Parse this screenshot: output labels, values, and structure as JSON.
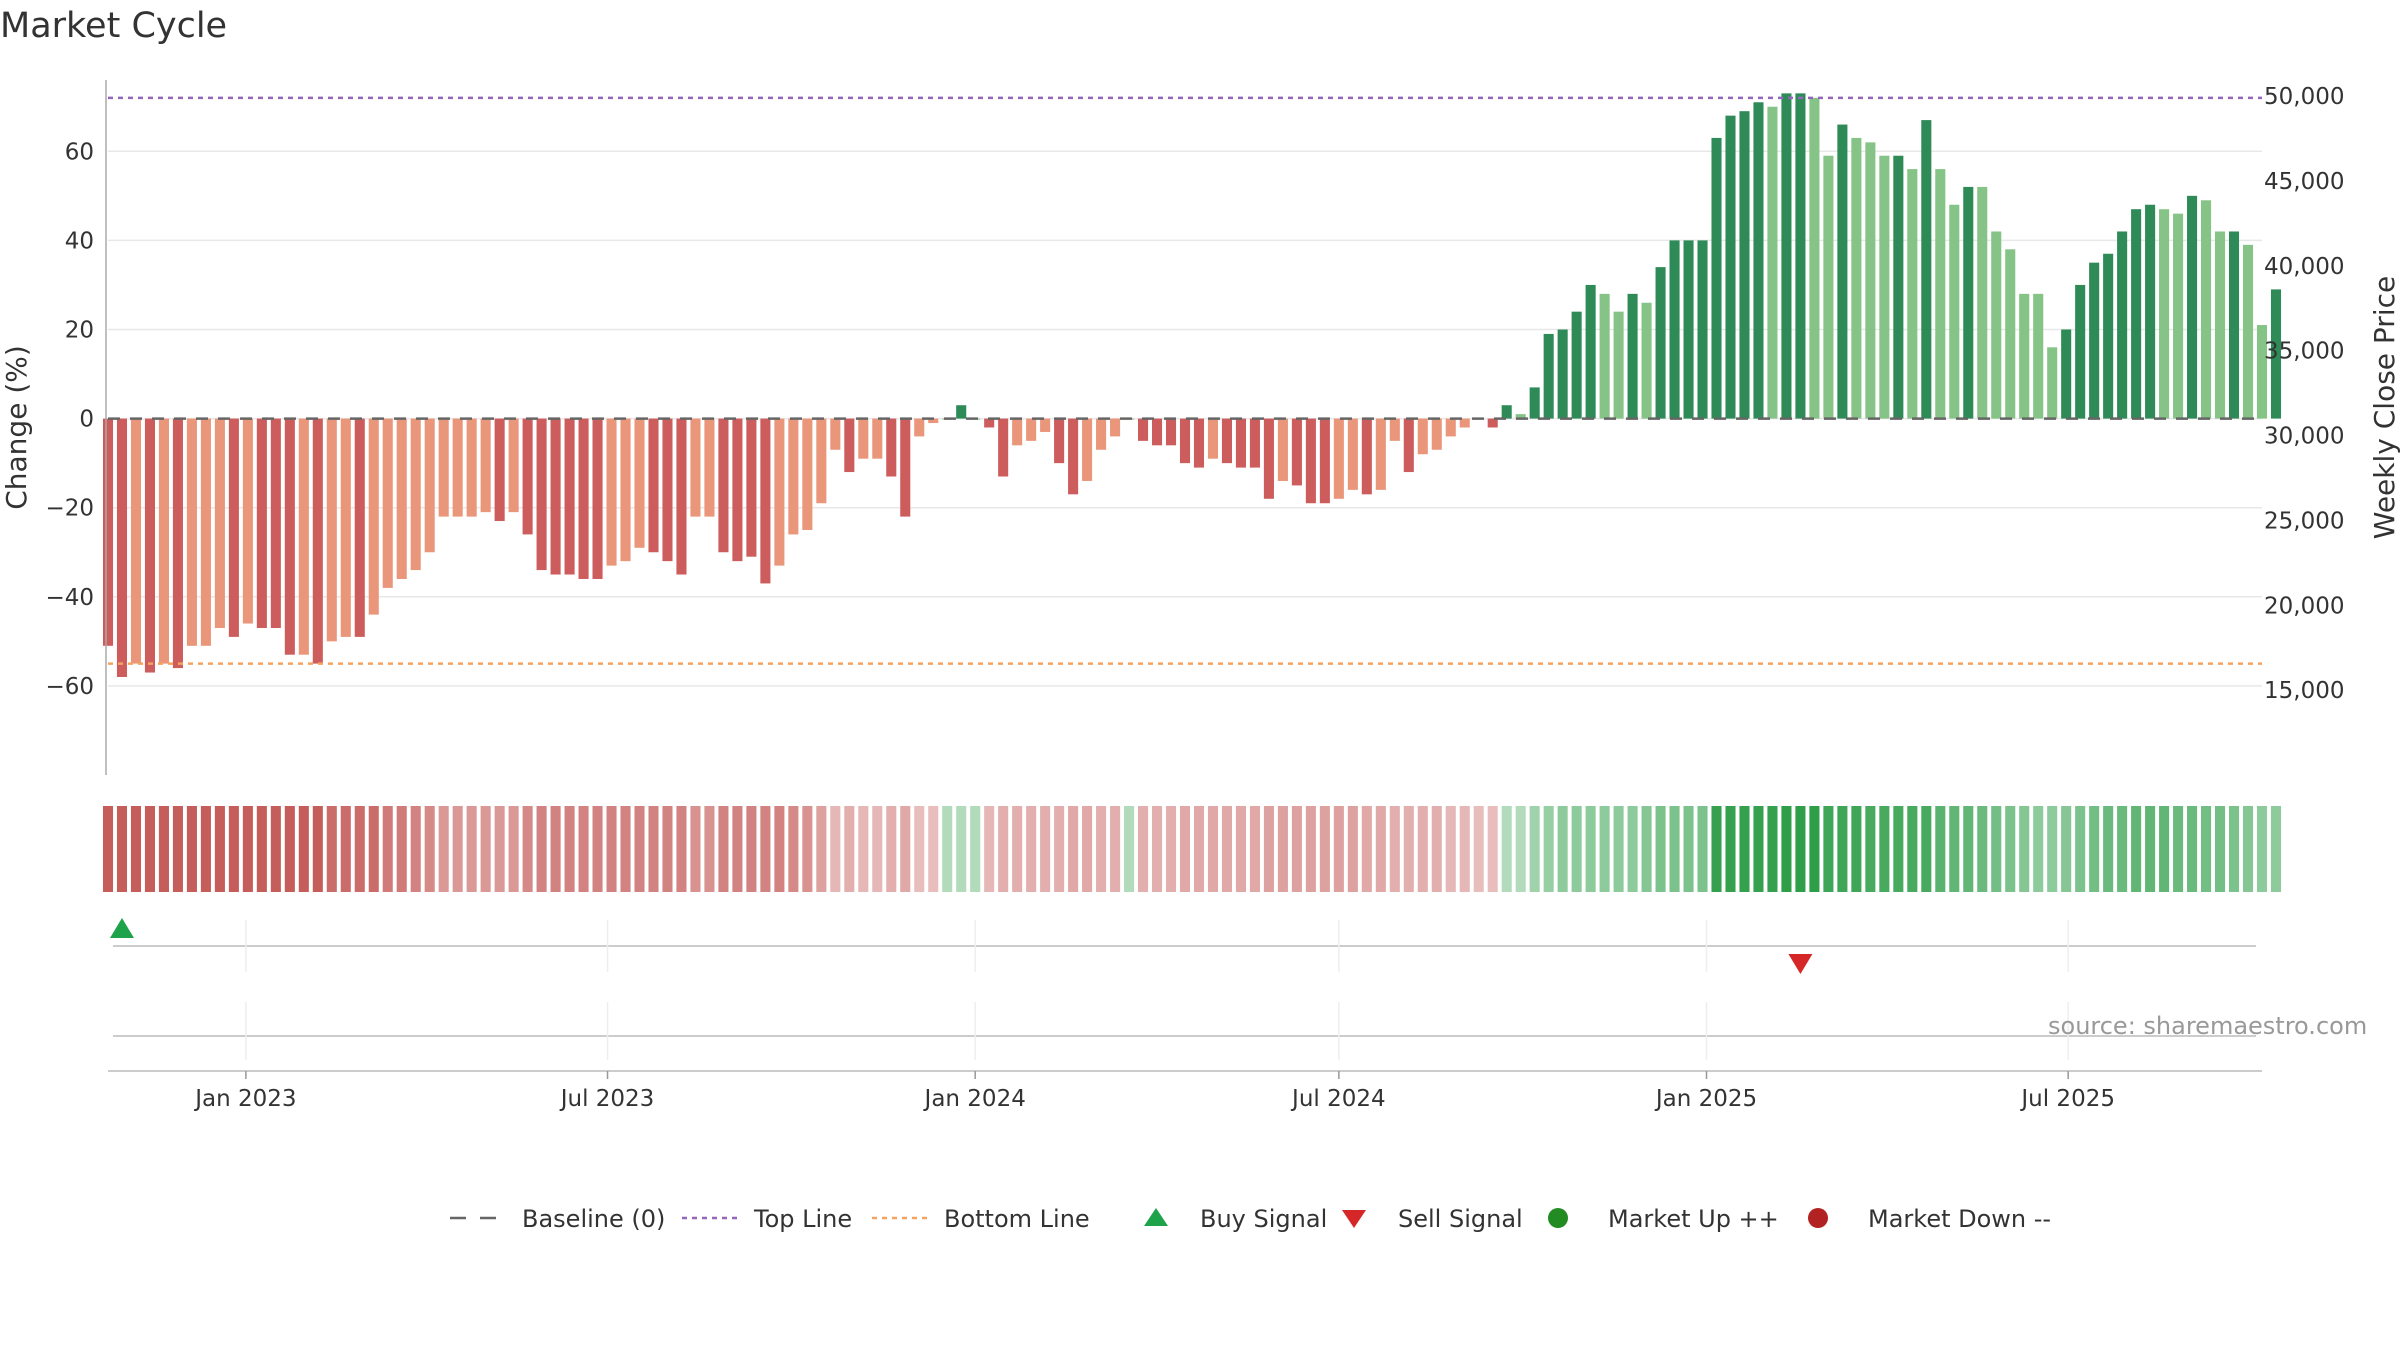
{
  "title": "Market Cycle",
  "source": "source: sharemaestro.com",
  "colors": {
    "strong_up": "#2e8b57",
    "weak_up": "#86c386",
    "strong_down": "#cd5c5c",
    "weak_down": "#e9967a",
    "top_line": "#9467bd",
    "bottom_line": "#f4a460",
    "baseline": "#666666",
    "buy": "#1ea34a",
    "sell": "#d62728",
    "market_up": "#228b22",
    "market_down": "#b22222"
  },
  "chart_data": {
    "type": "bar",
    "y_left": {
      "label": "Change (%)",
      "range": [
        -80,
        76
      ],
      "ticks": [
        {
          "value": 60,
          "label": "60"
        },
        {
          "value": 40,
          "label": "40"
        },
        {
          "value": 20,
          "label": "20"
        },
        {
          "value": 0,
          "label": "0"
        },
        {
          "value": -20,
          "label": "−20"
        },
        {
          "value": -40,
          "label": "−40"
        },
        {
          "value": -60,
          "label": "−60"
        }
      ]
    },
    "y_right": {
      "label": "Weekly Close Price",
      "ticks": [
        "50,000",
        "45,000",
        "40,000",
        "35,000",
        "30,000",
        "25,000",
        "20,000",
        "15,000"
      ]
    },
    "x_axis": {
      "range": [
        "2022-10-24",
        "2025-10-06"
      ],
      "ticks": [
        {
          "date": "2023-01-01",
          "label": "Jan 2023"
        },
        {
          "date": "2023-07-01",
          "label": "Jul 2023"
        },
        {
          "date": "2024-01-01",
          "label": "Jan 2024"
        },
        {
          "date": "2024-07-01",
          "label": "Jul 2024"
        },
        {
          "date": "2025-01-01",
          "label": "Jan 2025"
        },
        {
          "date": "2025-07-01",
          "label": "Jul 2025"
        }
      ]
    },
    "start_week": "2022-10-24",
    "top_line": 72,
    "bottom_line": -55,
    "change_pct": [
      -51,
      -58,
      -55,
      -57,
      -55,
      -56,
      -51,
      -51,
      -47,
      -49,
      -46,
      -47,
      -47,
      -53,
      -53,
      -55,
      -50,
      -49,
      -49,
      -44,
      -38,
      -36,
      -34,
      -30,
      -22,
      -22,
      -22,
      -21,
      -23,
      -21,
      -26,
      -34,
      -35,
      -35,
      -36,
      -36,
      -33,
      -32,
      -29,
      -30,
      -32,
      -35,
      -22,
      -22,
      -30,
      -32,
      -31,
      -37,
      -33,
      -26,
      -25,
      -19,
      -7,
      -12,
      -9,
      -9,
      -13,
      -22,
      -4,
      -1,
      0,
      3,
      0,
      -2,
      -13,
      -6,
      -5,
      -3,
      -10,
      -17,
      -14,
      -7,
      -4,
      0,
      -5,
      -6,
      -6,
      -10,
      -11,
      -9,
      -10,
      -11,
      -11,
      -18,
      -14,
      -15,
      -19,
      -19,
      -18,
      -16,
      -17,
      -16,
      -5,
      -12,
      -8,
      -7,
      -4,
      -2,
      0,
      -2,
      3,
      1,
      7,
      19,
      20,
      24,
      30,
      28,
      24,
      28,
      26,
      34,
      40,
      40,
      40,
      63,
      68,
      69,
      71,
      70,
      73,
      73,
      72,
      59,
      66,
      63,
      62,
      59,
      59,
      56,
      67,
      56,
      48,
      52,
      52,
      42,
      38,
      28,
      28,
      16,
      20,
      30,
      35,
      37,
      42,
      47,
      48,
      47,
      46,
      50,
      49,
      42,
      42,
      39,
      21,
      29
    ],
    "strength": [
      "s",
      "s",
      "w",
      "s",
      "w",
      "s",
      "w",
      "w",
      "w",
      "s",
      "w",
      "s",
      "s",
      "s",
      "w",
      "s",
      "w",
      "w",
      "s",
      "w",
      "w",
      "w",
      "w",
      "w",
      "w",
      "w",
      "w",
      "w",
      "s",
      "w",
      "s",
      "s",
      "s",
      "s",
      "s",
      "s",
      "w",
      "w",
      "w",
      "s",
      "s",
      "s",
      "w",
      "w",
      "s",
      "s",
      "s",
      "s",
      "w",
      "w",
      "w",
      "w",
      "w",
      "s",
      "w",
      "w",
      "s",
      "s",
      "w",
      "w",
      "w",
      "s",
      "w",
      "s",
      "s",
      "w",
      "w",
      "w",
      "s",
      "s",
      "w",
      "w",
      "w",
      "w",
      "s",
      "s",
      "s",
      "s",
      "s",
      "w",
      "s",
      "s",
      "s",
      "s",
      "w",
      "s",
      "s",
      "s",
      "w",
      "w",
      "s",
      "w",
      "w",
      "s",
      "w",
      "w",
      "w",
      "w",
      "w",
      "s",
      "s",
      "w",
      "s",
      "s",
      "s",
      "s",
      "s",
      "w",
      "w",
      "s",
      "w",
      "s",
      "s",
      "s",
      "s",
      "s",
      "s",
      "s",
      "s",
      "w",
      "s",
      "s",
      "w",
      "w",
      "s",
      "w",
      "w",
      "w",
      "s",
      "w",
      "s",
      "w",
      "w",
      "s",
      "w",
      "w",
      "w",
      "w",
      "w",
      "w",
      "s",
      "s",
      "s",
      "s",
      "s",
      "s",
      "s",
      "w",
      "w",
      "s",
      "w",
      "w",
      "s",
      "w",
      "w",
      "s"
    ],
    "market_strip": [
      -0.85,
      -0.85,
      -0.85,
      -0.85,
      -0.85,
      -0.85,
      -0.85,
      -0.85,
      -0.85,
      -0.85,
      -0.85,
      -0.85,
      -0.85,
      -0.85,
      -0.85,
      -0.85,
      -0.75,
      -0.75,
      -0.75,
      -0.75,
      -0.65,
      -0.65,
      -0.6,
      -0.55,
      -0.45,
      -0.45,
      -0.45,
      -0.45,
      -0.45,
      -0.45,
      -0.55,
      -0.6,
      -0.6,
      -0.6,
      -0.6,
      -0.6,
      -0.6,
      -0.6,
      -0.6,
      -0.6,
      -0.6,
      -0.6,
      -0.5,
      -0.5,
      -0.6,
      -0.6,
      -0.6,
      -0.6,
      -0.6,
      -0.55,
      -0.5,
      -0.4,
      -0.25,
      -0.3,
      -0.25,
      -0.25,
      -0.3,
      -0.35,
      -0.2,
      -0.2,
      0.2,
      0.2,
      0.2,
      -0.25,
      -0.3,
      -0.3,
      -0.3,
      -0.3,
      -0.3,
      -0.35,
      -0.35,
      -0.3,
      -0.3,
      0.2,
      -0.3,
      -0.3,
      -0.3,
      -0.35,
      -0.35,
      -0.35,
      -0.35,
      -0.35,
      -0.35,
      -0.4,
      -0.4,
      -0.4,
      -0.4,
      -0.4,
      -0.4,
      -0.4,
      -0.35,
      -0.35,
      -0.3,
      -0.3,
      -0.3,
      -0.3,
      -0.25,
      -0.25,
      -0.2,
      -0.2,
      0.2,
      0.2,
      0.3,
      0.35,
      0.4,
      0.4,
      0.4,
      0.4,
      0.4,
      0.4,
      0.45,
      0.5,
      0.5,
      0.5,
      0.5,
      0.9,
      0.9,
      0.9,
      0.9,
      0.9,
      0.95,
      0.95,
      0.95,
      0.85,
      0.85,
      0.85,
      0.8,
      0.8,
      0.8,
      0.8,
      0.8,
      0.7,
      0.65,
      0.65,
      0.6,
      0.55,
      0.5,
      0.45,
      0.4,
      0.4,
      0.45,
      0.5,
      0.55,
      0.6,
      0.6,
      0.65,
      0.65,
      0.65,
      0.6,
      0.6,
      0.55,
      0.55,
      0.5,
      0.45,
      0.4,
      0.4
    ],
    "buy_signals": [
      1
    ],
    "sell_signals": [
      121
    ],
    "legend": [
      {
        "key": "baseline",
        "label": "Baseline (0)"
      },
      {
        "key": "top",
        "label": "Top Line"
      },
      {
        "key": "bottom",
        "label": "Bottom Line"
      },
      {
        "key": "buy",
        "label": "Buy Signal"
      },
      {
        "key": "sell",
        "label": "Sell Signal"
      },
      {
        "key": "up",
        "label": "Market Up ++"
      },
      {
        "key": "down",
        "label": "Market Down --"
      }
    ]
  }
}
